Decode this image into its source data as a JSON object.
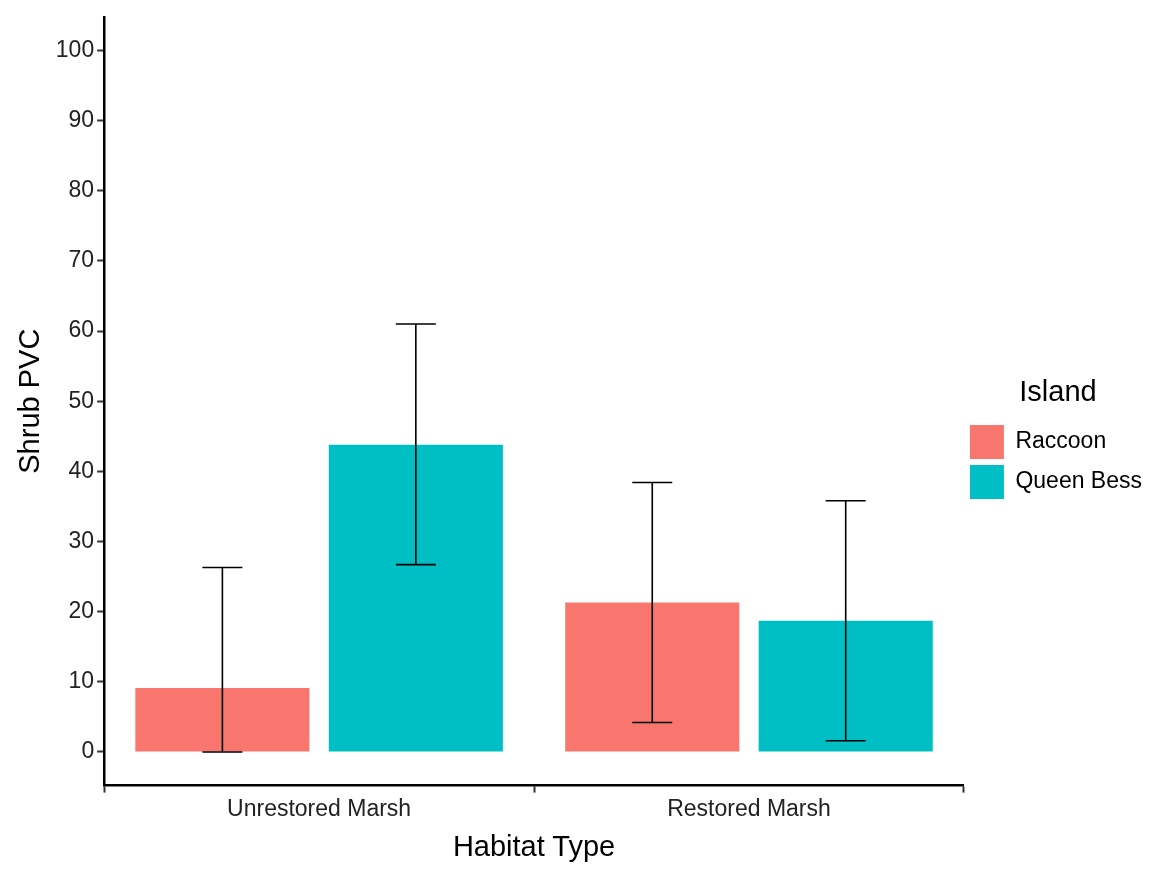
{
  "chart_data": {
    "type": "bar",
    "xlabel": "Habitat Type",
    "ylabel": "Shrub PVC",
    "legend_title": "Island",
    "categories": [
      "Unrestored Marsh",
      "Restored Marsh"
    ],
    "series": [
      {
        "name": "Raccoon",
        "color": "#f8766d",
        "values": [
          9.1,
          21.3
        ],
        "errors": [
          [
            0,
            26.3
          ],
          [
            4.2,
            38.4
          ]
        ]
      },
      {
        "name": "Queen Bess",
        "color": "#00bfc4",
        "values": [
          43.8,
          18.7
        ],
        "errors": [
          [
            26.7,
            61
          ],
          [
            1.6,
            35.8
          ]
        ]
      }
    ],
    "ylim": [
      -4.8,
      104.8
    ],
    "yticks": [
      0,
      10,
      20,
      30,
      40,
      50,
      60,
      70,
      80,
      90,
      100
    ],
    "grid": false,
    "legend": "right"
  }
}
